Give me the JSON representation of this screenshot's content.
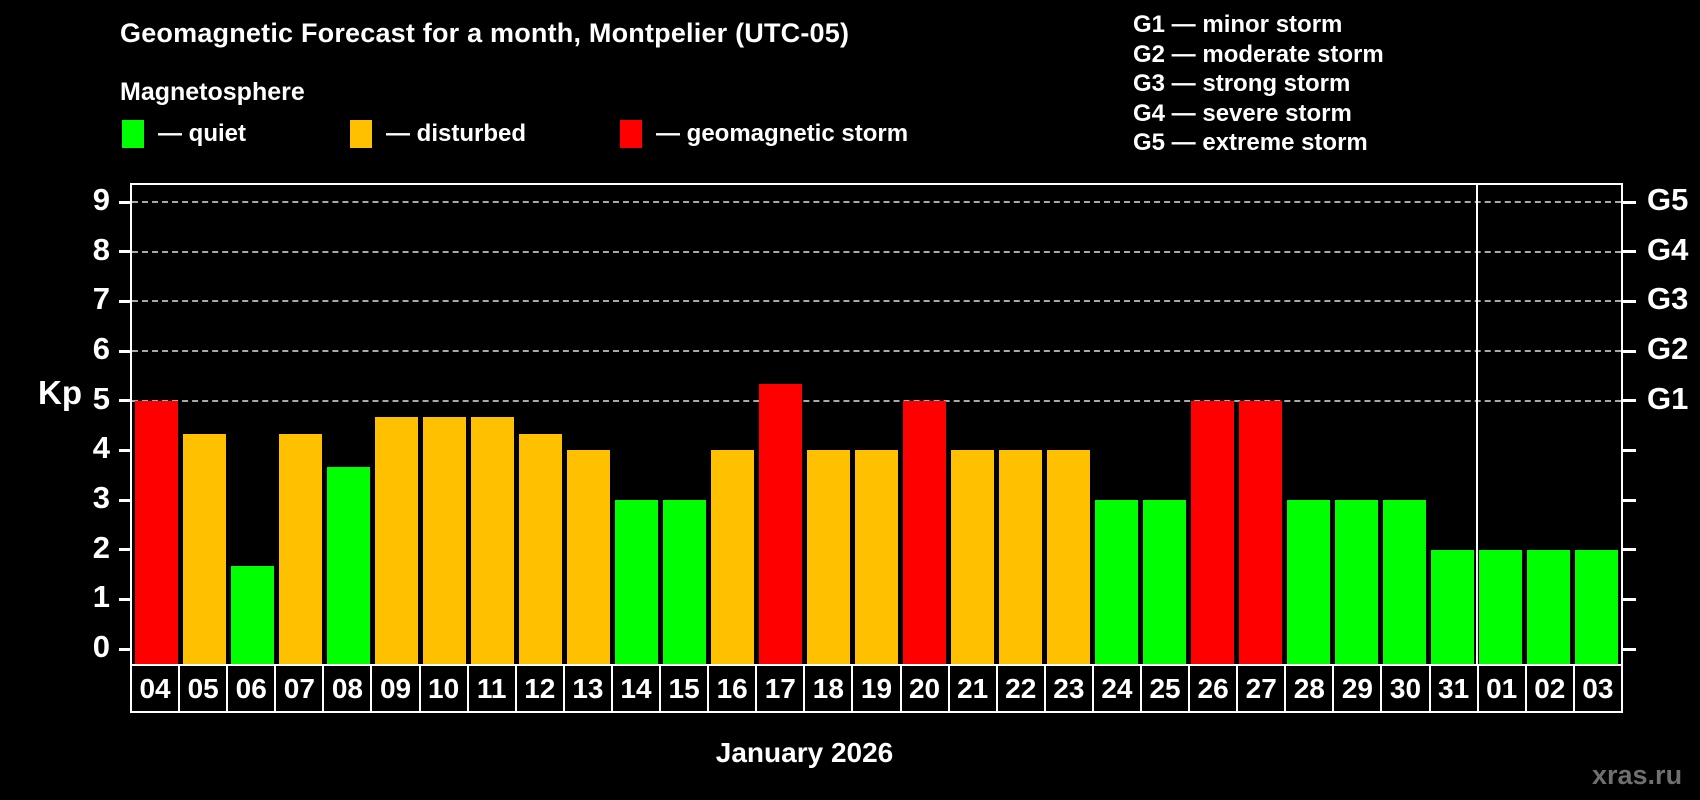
{
  "header": {
    "title": "Geomagnetic Forecast for a month, Montpelier (UTC-05)",
    "subtitle": "Magnetosphere",
    "legend": [
      {
        "label": "— quiet",
        "status": "quiet",
        "color": "#00ff00"
      },
      {
        "label": "— disturbed",
        "status": "disturbed",
        "color": "#ffc000"
      },
      {
        "label": "— geomagnetic storm",
        "status": "storm",
        "color": "#ff0000"
      }
    ],
    "storm_scale": [
      "G1 — minor storm",
      "G2 — moderate storm",
      "G3 — strong storm",
      "G4 — severe storm",
      "G5 — extreme storm"
    ]
  },
  "chart_data": {
    "type": "bar",
    "title": "Geomagnetic Forecast for a month, Montpelier (UTC-05)",
    "xlabel": "January 2026",
    "ylabel": "Kp",
    "ylim": [
      0,
      9
    ],
    "y_ticks": [
      0,
      1,
      2,
      3,
      4,
      5,
      6,
      7,
      8,
      9
    ],
    "gridline_levels": [
      5,
      6,
      7,
      8,
      9
    ],
    "grid": "dashed-horizontal",
    "legend_position": "top-left",
    "right_axis": [
      {
        "kp": 9,
        "label": "G5"
      },
      {
        "kp": 8,
        "label": "G4"
      },
      {
        "kp": 7,
        "label": "G3"
      },
      {
        "kp": 6,
        "label": "G2"
      },
      {
        "kp": 5,
        "label": "G1"
      }
    ],
    "status_colors": {
      "quiet": "#00ff00",
      "disturbed": "#ffc000",
      "storm": "#ff0000"
    },
    "categories": [
      "04",
      "05",
      "06",
      "07",
      "08",
      "09",
      "10",
      "11",
      "12",
      "13",
      "14",
      "15",
      "16",
      "17",
      "18",
      "19",
      "20",
      "21",
      "22",
      "23",
      "24",
      "25",
      "26",
      "27",
      "28",
      "29",
      "30",
      "31",
      "01",
      "02",
      "03"
    ],
    "values": [
      5,
      4.33,
      1.67,
      4.33,
      3.67,
      4.67,
      4.67,
      4.67,
      4.33,
      4,
      3,
      3,
      4,
      5.33,
      4,
      4,
      5,
      4,
      4,
      4,
      3,
      3,
      5,
      5,
      3,
      3,
      3,
      2,
      2,
      2,
      2
    ],
    "statuses": [
      "storm",
      "disturbed",
      "quiet",
      "disturbed",
      "quiet",
      "disturbed",
      "disturbed",
      "disturbed",
      "disturbed",
      "disturbed",
      "quiet",
      "quiet",
      "disturbed",
      "storm",
      "disturbed",
      "disturbed",
      "storm",
      "disturbed",
      "disturbed",
      "disturbed",
      "quiet",
      "quiet",
      "storm",
      "storm",
      "quiet",
      "quiet",
      "quiet",
      "quiet",
      "quiet",
      "quiet",
      "quiet"
    ],
    "month_separator_after_index": 27
  },
  "footer": {
    "watermark": "xras.ru"
  }
}
